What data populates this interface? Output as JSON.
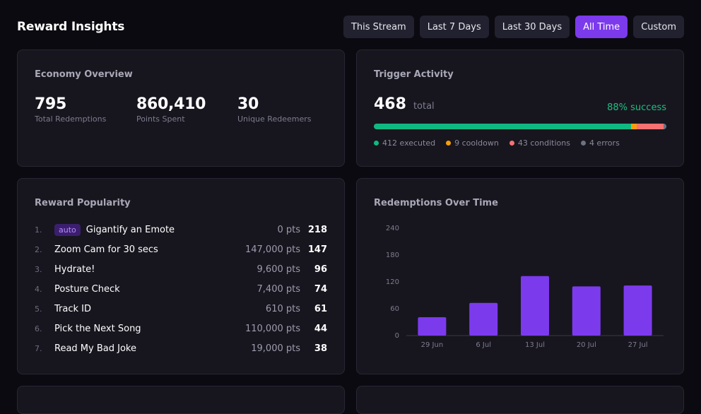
{
  "header": {
    "title": "Reward Insights",
    "filters": [
      {
        "label": "This Stream",
        "active": false
      },
      {
        "label": "Last 7 Days",
        "active": false
      },
      {
        "label": "Last 30 Days",
        "active": false
      },
      {
        "label": "All Time",
        "active": true
      },
      {
        "label": "Custom",
        "active": false
      }
    ]
  },
  "economy": {
    "title": "Economy Overview",
    "stats": [
      {
        "value": "795",
        "label": "Total Redemptions"
      },
      {
        "value": "860,410",
        "label": "Points Spent"
      },
      {
        "value": "30",
        "label": "Unique Redeemers"
      }
    ]
  },
  "trigger": {
    "title": "Trigger Activity",
    "total_value": "468",
    "total_label": "total",
    "success": "88% success",
    "legend": [
      {
        "label": "412 executed",
        "value": 412,
        "color": "#10b981"
      },
      {
        "label": "9 cooldown",
        "value": 9,
        "color": "#f59e0b"
      },
      {
        "label": "43 conditions",
        "value": 43,
        "color": "#f87171"
      },
      {
        "label": "4 errors",
        "value": 4,
        "color": "#6b7280"
      }
    ]
  },
  "popularity": {
    "title": "Reward Popularity",
    "items": [
      {
        "rank": "1.",
        "badge": "auto",
        "name": "Gigantify an Emote",
        "pts": "0 pts",
        "count": "218"
      },
      {
        "rank": "2.",
        "badge": "",
        "name": "Zoom Cam for 30 secs",
        "pts": "147,000 pts",
        "count": "147"
      },
      {
        "rank": "3.",
        "badge": "",
        "name": "Hydrate!",
        "pts": "9,600 pts",
        "count": "96"
      },
      {
        "rank": "4.",
        "badge": "",
        "name": "Posture Check",
        "pts": "7,400 pts",
        "count": "74"
      },
      {
        "rank": "5.",
        "badge": "",
        "name": "Track ID",
        "pts": "610 pts",
        "count": "61"
      },
      {
        "rank": "6.",
        "badge": "",
        "name": "Pick the Next Song",
        "pts": "110,000 pts",
        "count": "44"
      },
      {
        "rank": "7.",
        "badge": "",
        "name": "Read My Bad Joke",
        "pts": "19,000 pts",
        "count": "38"
      }
    ]
  },
  "redemptions": {
    "title": "Redemptions Over Time"
  },
  "chart_data": {
    "type": "bar",
    "categories": [
      "29 Jun",
      "6 Jul",
      "13 Jul",
      "20 Jul",
      "27 Jul"
    ],
    "values": [
      41,
      73,
      133,
      110,
      112
    ],
    "yticks": [
      0,
      60,
      120,
      180,
      240
    ],
    "ylim": [
      0,
      240
    ],
    "bar_color": "#7c3aed",
    "grid": false
  }
}
